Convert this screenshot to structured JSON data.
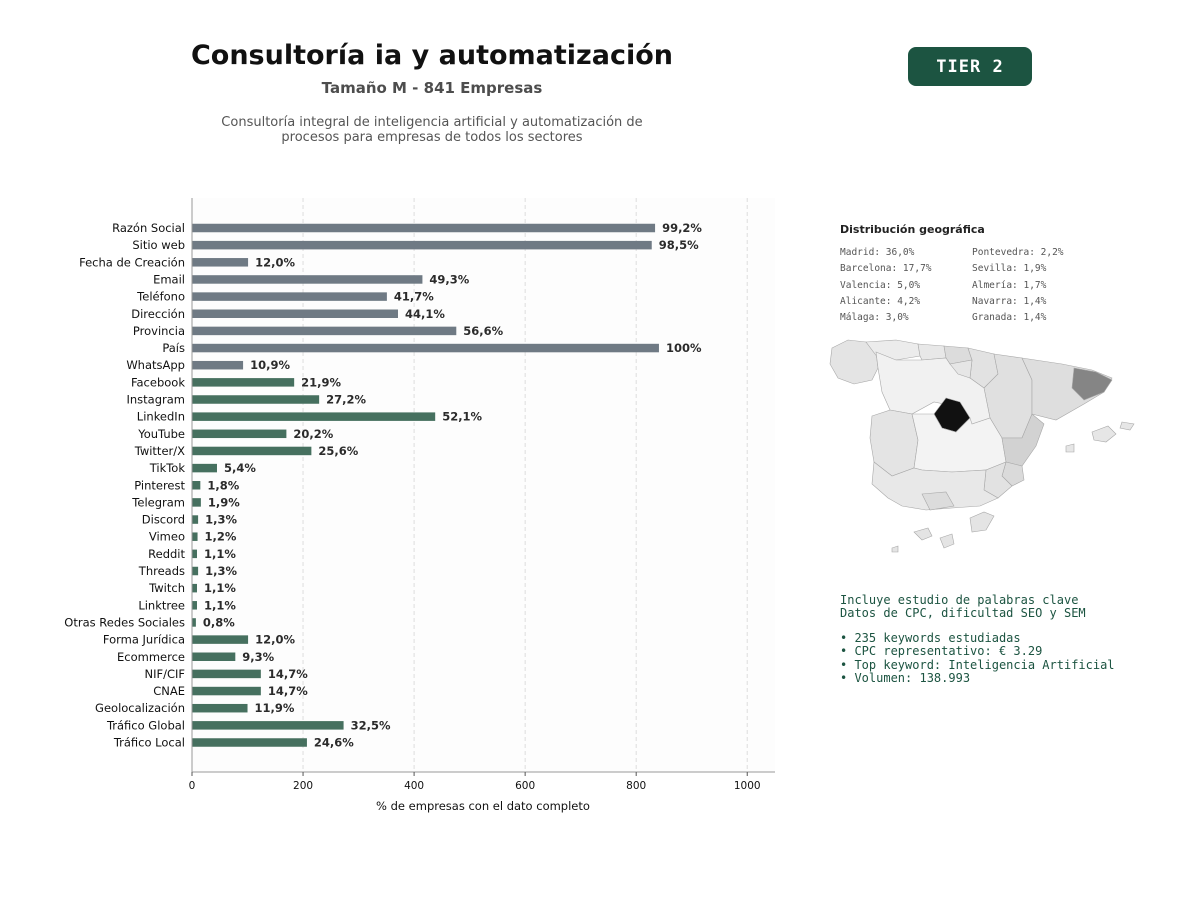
{
  "header": {
    "title": "Consultoría ia y automatización",
    "subtitle": "Tamaño M - 841 Empresas",
    "description_line1": "Consultoría integral de inteligencia artificial y automatización de",
    "description_line2": "procesos para empresas de todos los sectores",
    "badge": "TIER 2"
  },
  "chart_data": {
    "type": "bar",
    "orientation": "horizontal",
    "xlabel": "% de empresas con el dato completo",
    "xlim": [
      0,
      1050
    ],
    "xticks": [
      0,
      200,
      400,
      600,
      800,
      1000
    ],
    "grid": "vertical dashed",
    "categories": [
      "Razón Social",
      "Sitio web",
      "Fecha de Creación",
      "Email",
      "Teléfono",
      "Dirección",
      "Provincia",
      "País",
      "WhatsApp",
      "Facebook",
      "Instagram",
      "LinkedIn",
      "YouTube",
      "Twitter/X",
      "TikTok",
      "Pinterest",
      "Telegram",
      "Discord",
      "Vimeo",
      "Reddit",
      "Threads",
      "Twitch",
      "Linktree",
      "Otras Redes Sociales",
      "Forma Jurídica",
      "Ecommerce",
      "NIF/CIF",
      "CNAE",
      "Geolocalización",
      "Tráfico Global",
      "Tráfico Local"
    ],
    "values": [
      834,
      828,
      101,
      415,
      351,
      371,
      476,
      841,
      92,
      184,
      229,
      438,
      170,
      215,
      45,
      15,
      16,
      11,
      10,
      9,
      11,
      9,
      9,
      7,
      101,
      78,
      124,
      124,
      100,
      273,
      207
    ],
    "labels": [
      "99,2%",
      "98,5%",
      "12,0%",
      "49,3%",
      "41,7%",
      "44,1%",
      "56,6%",
      "100%",
      "10,9%",
      "21,9%",
      "27,2%",
      "52,1%",
      "20,2%",
      "25,6%",
      "5,4%",
      "1,8%",
      "1,9%",
      "1,3%",
      "1,2%",
      "1,1%",
      "1,3%",
      "1,1%",
      "1,1%",
      "0,8%",
      "12,0%",
      "9,3%",
      "14,7%",
      "14,7%",
      "11,9%",
      "32,5%",
      "24,6%"
    ],
    "colors": [
      "#6f7a84",
      "#6f7a84",
      "#6f7a84",
      "#6f7a84",
      "#6f7a84",
      "#6f7a84",
      "#6f7a84",
      "#6f7a84",
      "#6f7a84",
      "#46705f",
      "#46705f",
      "#46705f",
      "#46705f",
      "#46705f",
      "#46705f",
      "#46705f",
      "#46705f",
      "#46705f",
      "#46705f",
      "#46705f",
      "#46705f",
      "#46705f",
      "#46705f",
      "#46705f",
      "#46705f",
      "#46705f",
      "#46705f",
      "#46705f",
      "#46705f",
      "#46705f",
      "#46705f"
    ]
  },
  "geo": {
    "title": "Distribución geográfica",
    "col1": [
      "Madrid: 36,0%",
      "Barcelona: 17,7%",
      "Valencia: 5,0%",
      "Alicante: 4,2%",
      "Málaga: 3,0%"
    ],
    "col2": [
      "Pontevedra: 2,2%",
      "Sevilla: 1,9%",
      "Almería: 1,7%",
      "Navarra: 1,4%",
      "Granada: 1,4%"
    ]
  },
  "keywords": {
    "line1": "Incluye estudio de palabras clave",
    "line2": "Datos de CPC, dificultad SEO y SEM",
    "bullets": [
      "• 235 keywords estudiadas",
      "• CPC representativo: € 3.29",
      "• Top keyword: Inteligencia Artificial",
      "• Volumen: 138.993"
    ]
  }
}
